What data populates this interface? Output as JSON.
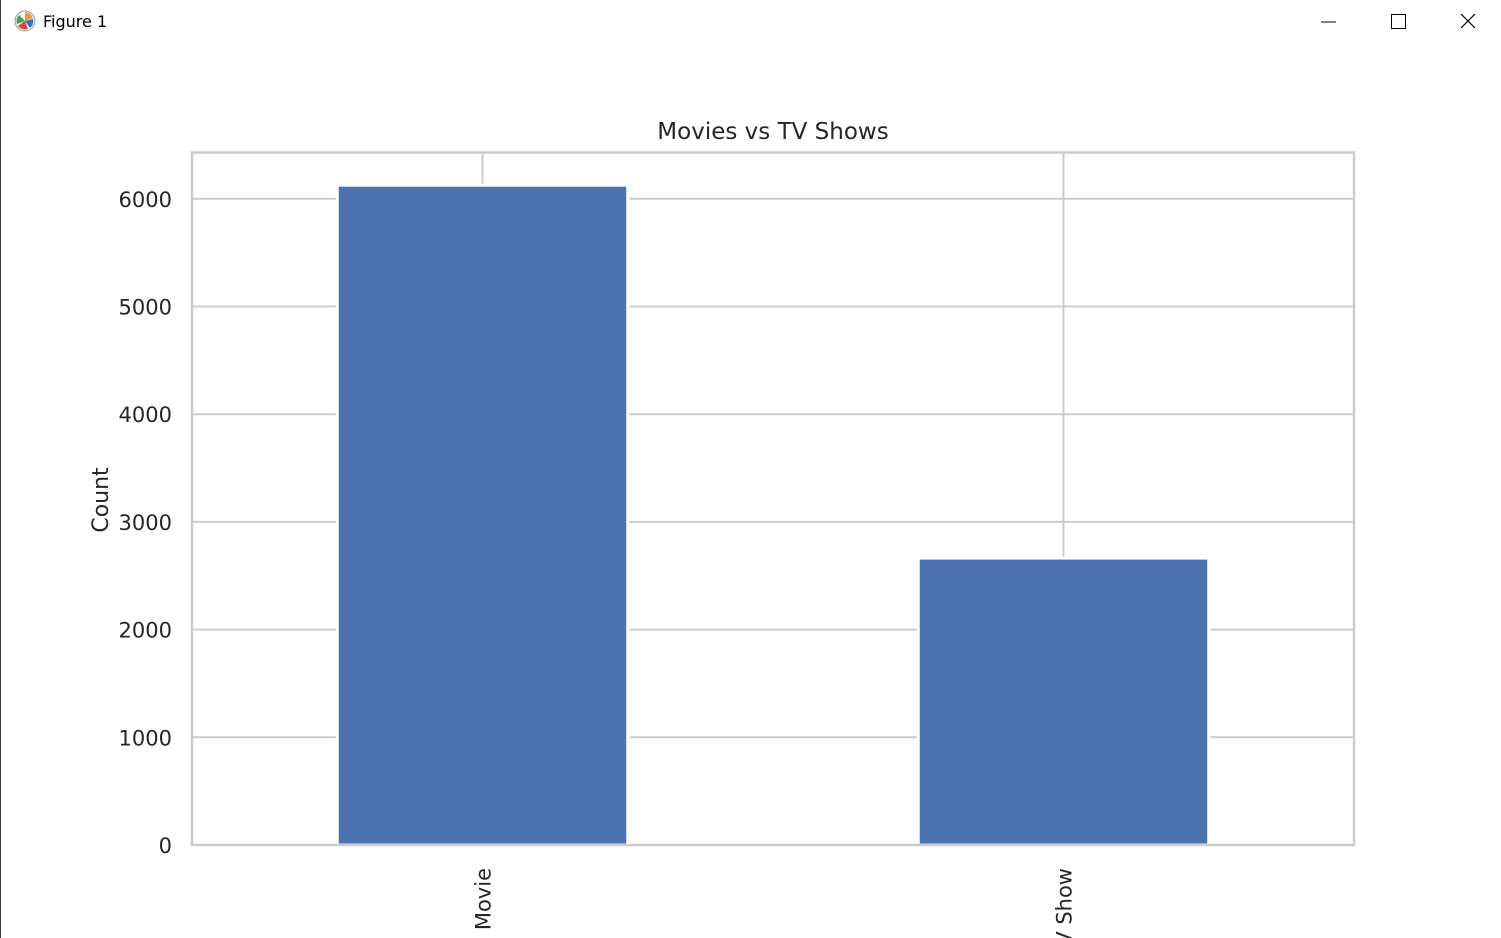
{
  "window": {
    "title": "Figure 1",
    "app_icon": "matplotlib-icon",
    "controls": [
      "minimize-icon",
      "maximize-icon",
      "close-icon"
    ]
  },
  "chart_data": {
    "type": "bar",
    "title": "Movies vs TV Shows",
    "xlabel": "",
    "ylabel": "Count",
    "categories": [
      "Movie",
      "TV Show"
    ],
    "values": [
      6126,
      2664
    ],
    "ylim": [
      0,
      6430
    ],
    "yticks": [
      0,
      1000,
      2000,
      3000,
      4000,
      5000,
      6000
    ],
    "grid": true,
    "bar_color": "#4c72b0",
    "grid_color": "#cccccc"
  }
}
